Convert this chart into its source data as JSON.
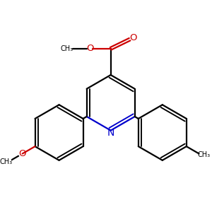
{
  "bg_color": "#ffffff",
  "black": "#000000",
  "blue": "#0000cc",
  "red": "#cc0000",
  "lw": 1.6,
  "dbo": 0.045,
  "figsize": [
    3.0,
    3.0
  ],
  "dpi": 100,
  "xlim": [
    0.0,
    3.0
  ],
  "ylim": [
    0.0,
    3.0
  ],
  "r": 0.42
}
